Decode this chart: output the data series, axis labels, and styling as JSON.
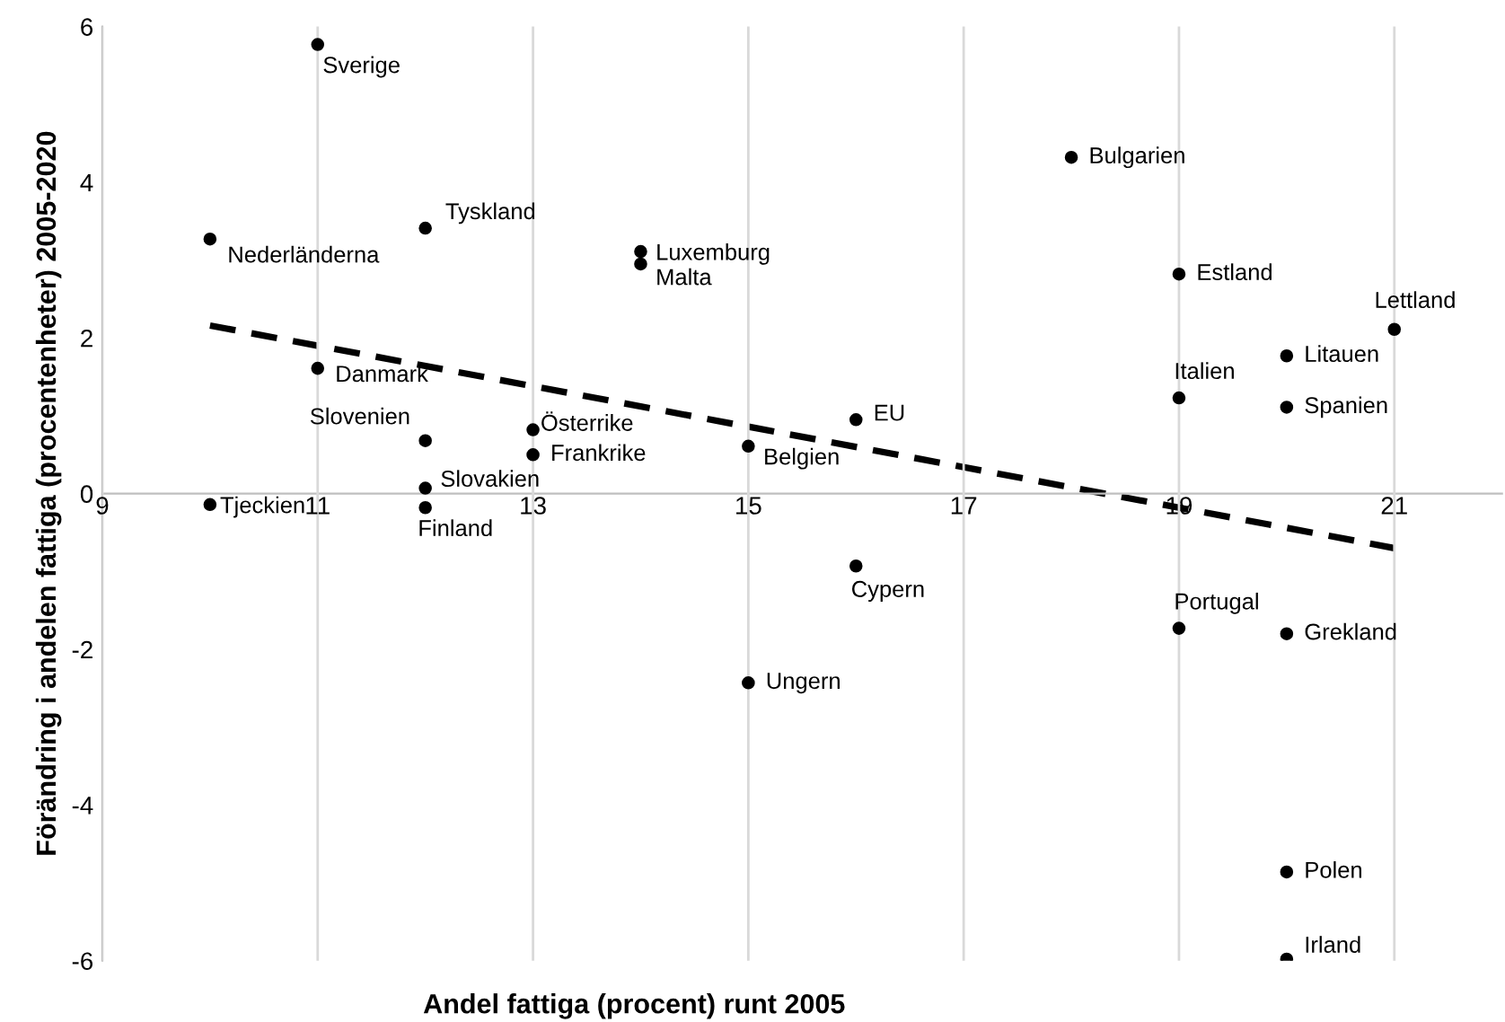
{
  "chart_data": {
    "type": "scatter",
    "xlabel": "Andel fattiga (procent) runt 2005",
    "ylabel": "Förändring i andelen fattiga (procentenheter) 2005-2020",
    "xlim": [
      9,
      22
    ],
    "xticks": [
      9,
      11,
      13,
      15,
      17,
      19,
      21
    ],
    "ylim": [
      -6,
      6
    ],
    "yticks": [
      -6,
      -4,
      -2,
      0,
      2,
      4,
      6
    ],
    "grid": "x",
    "legend": false,
    "series": [
      {
        "type": "scatter",
        "color": "#000000",
        "marker": "circle",
        "x": [
          11,
          18,
          10,
          12,
          14,
          14,
          19,
          21,
          11,
          20,
          19,
          20,
          16,
          12,
          13,
          13,
          15,
          12,
          12,
          10,
          16,
          19,
          20,
          15,
          20,
          20
        ],
        "values": [
          5.77,
          4.32,
          3.27,
          3.41,
          3.11,
          2.95,
          2.82,
          2.11,
          1.61,
          1.77,
          1.23,
          1.11,
          0.95,
          0.68,
          0.82,
          0.5,
          0.61,
          0.07,
          -0.18,
          -0.14,
          -0.93,
          -1.73,
          -1.8,
          -2.43,
          -4.86,
          -5.98
        ]
      },
      {
        "type": "line",
        "color": "#000000",
        "line_style": "dashed",
        "marker": "none",
        "x": [
          10,
          21
        ],
        "values": [
          2.16,
          -0.7
        ]
      }
    ],
    "annotations": [
      {
        "text": "Sverige",
        "x": 11,
        "y": 5.77
      },
      {
        "text": "Bulgarien",
        "x": 18,
        "y": 4.32
      },
      {
        "text": "Nederländerna",
        "x": 10,
        "y": 3.27
      },
      {
        "text": "Tyskland",
        "x": 12,
        "y": 3.41
      },
      {
        "text": "Luxemburg",
        "x": 14,
        "y": 3.11
      },
      {
        "text": "Malta",
        "x": 14,
        "y": 2.95
      },
      {
        "text": "Estland",
        "x": 19,
        "y": 2.82
      },
      {
        "text": "Lettland",
        "x": 21,
        "y": 2.11
      },
      {
        "text": "Danmark",
        "x": 11,
        "y": 1.61
      },
      {
        "text": "Litauen",
        "x": 20,
        "y": 1.77
      },
      {
        "text": "Italien",
        "x": 19,
        "y": 1.23
      },
      {
        "text": "Spanien",
        "x": 20,
        "y": 1.11
      },
      {
        "text": "EU",
        "x": 16,
        "y": 0.95
      },
      {
        "text": "Slovenien",
        "x": 12,
        "y": 0.68
      },
      {
        "text": "Österrike",
        "x": 13,
        "y": 0.82
      },
      {
        "text": "Frankrike",
        "x": 13,
        "y": 0.5
      },
      {
        "text": "Belgien",
        "x": 15,
        "y": 0.61
      },
      {
        "text": "Slovakien",
        "x": 12,
        "y": 0.07
      },
      {
        "text": "Finland",
        "x": 12,
        "y": -0.18
      },
      {
        "text": "Tjeckien",
        "x": 10,
        "y": -0.14
      },
      {
        "text": "Cypern",
        "x": 16,
        "y": -0.93
      },
      {
        "text": "Portugal",
        "x": 19,
        "y": -1.73
      },
      {
        "text": "Grekland",
        "x": 20,
        "y": -1.8
      },
      {
        "text": "Ungern",
        "x": 15,
        "y": -2.43
      },
      {
        "text": "Polen",
        "x": 20,
        "y": -4.86
      },
      {
        "text": "Irland",
        "x": 20,
        "y": -5.98
      }
    ]
  }
}
